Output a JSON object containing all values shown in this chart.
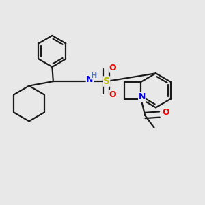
{
  "background_color": "#e8e8e8",
  "bond_color": "#1a1a1a",
  "bond_width": 1.6,
  "atom_colors": {
    "N": "#0000ee",
    "O": "#ee0000",
    "S": "#bbbb00",
    "H": "#5577aa",
    "C": "#1a1a1a"
  },
  "figsize": [
    3.0,
    3.0
  ],
  "dpi": 100,
  "xlim": [
    0,
    10
  ],
  "ylim": [
    0,
    10
  ]
}
